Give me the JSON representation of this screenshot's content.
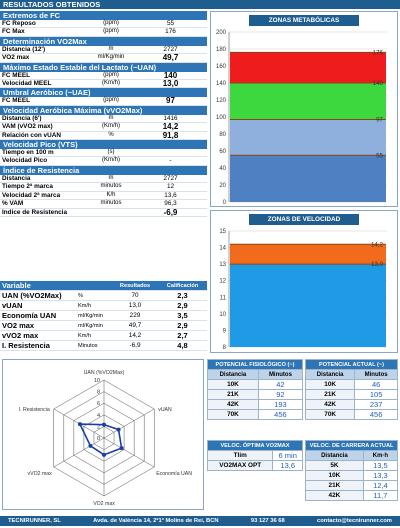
{
  "header": {
    "title": "RESULTADOS OBTENIDOS"
  },
  "fc": {
    "title": "Extremos de FC",
    "rows": [
      {
        "label": "FC Reposo",
        "unit": "(ppm)",
        "value": "55"
      },
      {
        "label": "FC Max",
        "unit": "(ppm)",
        "value": "176"
      }
    ]
  },
  "vo2": {
    "title": "Determinación VO2Max",
    "rows": [
      {
        "label": "Distancia (12')",
        "unit": "m",
        "value": "2727"
      },
      {
        "label": "VO2 max",
        "unit": "ml/Kg/min",
        "value": "49,7"
      }
    ]
  },
  "meel": {
    "title": "Máximo Estado Estable del Lactato (~UAN)",
    "rows": [
      {
        "label": "FC MEEL",
        "unit": "(ppm)",
        "value": "140"
      },
      {
        "label": "Velocidad MEEL",
        "unit": "(Km/h)",
        "value": "13,0"
      }
    ]
  },
  "uae": {
    "title": "Umbral Aeróbico (~UAE)",
    "rows": [
      {
        "label": "FC MEEL",
        "unit": "(ppm)",
        "value": "97"
      }
    ]
  },
  "vvo2": {
    "title": "Velocidad Aeróbica Máxima (vVO2Max)",
    "rows": [
      {
        "label": "Distancia (6')",
        "unit": "m",
        "value": "1416"
      },
      {
        "label": "VAM (vVO2 max)",
        "unit": "(Km/h)",
        "value": "14,2"
      },
      {
        "label": "Relación con vUAN",
        "unit": "%",
        "value": "91,8"
      }
    ]
  },
  "vts": {
    "title": "Velocidad Pico (VTS)",
    "rows": [
      {
        "label": "Tiempo en 100 m",
        "unit": "(s)",
        "value": ""
      },
      {
        "label": "Velocidad Pico",
        "unit": "(Km/h)",
        "value": "-"
      }
    ]
  },
  "resist": {
    "title": "Índice de Resistencia",
    "rows": [
      {
        "label": "Distancia",
        "unit": "m",
        "value": "2727"
      },
      {
        "label": "Tiempo 2ª marca",
        "unit": "minutos",
        "value": "12"
      },
      {
        "label": "Velocidad 2ª marca",
        "unit": "K/h",
        "value": "13,6"
      },
      {
        "label": "% VAM",
        "unit": "minutos",
        "value": "96,3"
      },
      {
        "label": "Indice de Resistencia",
        "unit": "",
        "value": "-6,9"
      }
    ]
  },
  "variables": {
    "headers": [
      "Variable",
      "",
      "Resultados",
      "Calificación"
    ],
    "rows": [
      {
        "name": "UAN (%VO2Max)",
        "unit": "%",
        "result": "70",
        "score": "2,3"
      },
      {
        "name": "vUAN",
        "unit": "Km/h",
        "result": "13,0",
        "score": "2,9"
      },
      {
        "name": "Economía UAN",
        "unit": "ml/Kg/min",
        "result": "229",
        "score": "3,5"
      },
      {
        "name": "VO2 max",
        "unit": "ml/Kg/min",
        "result": "49,7",
        "score": "2,9"
      },
      {
        "name": "vVO2 max",
        "unit": "Km/h",
        "result": "14,2",
        "score": "2,7"
      },
      {
        "name": "I. Resistencia",
        "unit": "Minutos",
        "result": "-6,9",
        "score": "4,8"
      }
    ]
  },
  "chart_data": [
    {
      "type": "bar",
      "title": "ZONAS METABÓLICAS",
      "ylim": [
        0,
        200
      ],
      "ticks": [
        0,
        20,
        40,
        60,
        80,
        100,
        120,
        140,
        160,
        180,
        200
      ],
      "bands": [
        {
          "from": 140,
          "to": 176,
          "color": "#ee1c1c",
          "label": "176"
        },
        {
          "from": 97,
          "to": 140,
          "color": "#3dd83d",
          "label": "140"
        },
        {
          "from": 55,
          "to": 97,
          "color": "#8fb0dc",
          "label": "97"
        },
        {
          "from": 0,
          "to": 55,
          "color": "#4f81c2",
          "label": "55"
        }
      ]
    },
    {
      "type": "bar",
      "title": "ZONAS DE VELOCIDAD",
      "ylim": [
        8,
        15
      ],
      "ticks": [
        8,
        9,
        10,
        11,
        12,
        13,
        14,
        15
      ],
      "bands": [
        {
          "from": 13.0,
          "to": 14.2,
          "color": "#f26b1d",
          "label": "14,2"
        },
        {
          "from": 8,
          "to": 13.0,
          "color": "#1f9be6",
          "label": "13,0"
        }
      ]
    },
    {
      "type": "radar",
      "ticks": [
        0,
        2,
        4,
        6,
        8,
        10
      ],
      "rmax": 10,
      "axes": [
        "UAN (%VO2Max)",
        "vUAN",
        "Economía UAN",
        "VO2 max",
        "vVO2 max",
        "I. Resistencia"
      ],
      "values": [
        2.3,
        2.9,
        3.5,
        2.9,
        2.7,
        4.8
      ]
    }
  ],
  "potencial_fisio": {
    "title": "POTENCIAL FISIOLÓGICO (~)",
    "headers": [
      "Distancia",
      "Minutos"
    ],
    "rows": [
      [
        "10K",
        "42"
      ],
      [
        "21K",
        "92"
      ],
      [
        "42K",
        "193"
      ],
      [
        "70K",
        "456"
      ]
    ]
  },
  "potencial_actual": {
    "title": "POTENCIAL ACTUAL (~)",
    "headers": [
      "Distancia",
      "Minutos"
    ],
    "rows": [
      [
        "10K",
        "46"
      ],
      [
        "21K",
        "105"
      ],
      [
        "42K",
        "237"
      ],
      [
        "70K",
        "456"
      ]
    ]
  },
  "veloc_optima": {
    "title": "VELOC. ÓPTIMA VO2MAX",
    "rows": [
      [
        "Tlim",
        "6 min"
      ],
      [
        "VO2MAX OPT",
        "13,6"
      ]
    ]
  },
  "veloc_carrera": {
    "title": "VELOC. DE CARRERA ACTUAL",
    "headers": [
      "Distancia",
      "Km·h"
    ],
    "rows": [
      [
        "5K",
        "13,5"
      ],
      [
        "10K",
        "13,3"
      ],
      [
        "21K",
        "12,4"
      ],
      [
        "42K",
        "11,7"
      ]
    ]
  },
  "footer": {
    "company": "TECNIRUNNER, SL",
    "address": "Avda. de València 14, 2º1ª Molins de Rei, BCN",
    "phone": "93 127 36 68",
    "email": "contacto@tecnirunner.com"
  }
}
